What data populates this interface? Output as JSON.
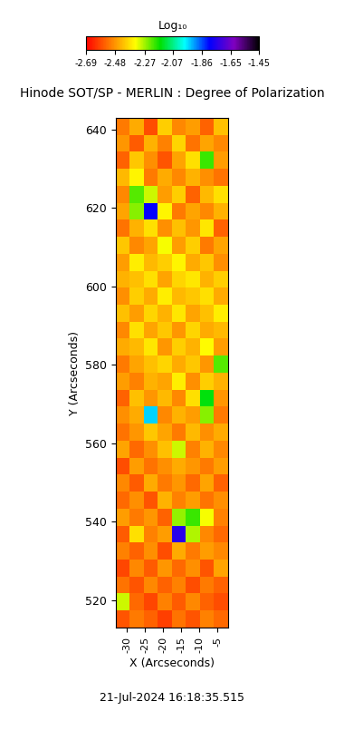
{
  "chart_data": {
    "type": "heatmap",
    "title": "Hinode SOT/SP - MERLIN : Degree of Polarization",
    "x_label": "X (Arcseconds)",
    "y_label": "Y (Arcseconds)",
    "xlim": [
      -33,
      -2
    ],
    "ylim": [
      513,
      643
    ],
    "xticks": [
      -30,
      -25,
      -20,
      -15,
      -10,
      -5
    ],
    "yticks": [
      520,
      540,
      560,
      580,
      600,
      620,
      640
    ],
    "annotations": [
      "21-Jul-2024 16:18:35.515"
    ],
    "colorbar": {
      "label": "Log₁₀",
      "range": [
        -2.69,
        -1.45
      ],
      "ticks": [
        -2.69,
        -2.48,
        -2.27,
        -2.07,
        -1.86,
        -1.65,
        -1.45
      ]
    },
    "cells": [
      [
        -2.52,
        -2.45,
        -2.58,
        -2.4,
        -2.5,
        -2.47,
        -2.55,
        -2.42
      ],
      [
        -2.48,
        -2.56,
        -2.44,
        -2.51,
        -2.39,
        -2.53,
        -2.46,
        -2.5
      ],
      [
        -2.55,
        -2.41,
        -2.49,
        -2.57,
        -2.46,
        -2.38,
        -2.2,
        -2.47
      ],
      [
        -2.43,
        -2.35,
        -2.52,
        -2.45,
        -2.5,
        -2.44,
        -2.49,
        -2.53
      ],
      [
        -2.5,
        -2.22,
        -2.3,
        -2.47,
        -2.4,
        -2.55,
        -2.43,
        -2.38
      ],
      [
        -2.46,
        -2.25,
        -1.8,
        -2.35,
        -2.52,
        -2.46,
        -2.5,
        -2.44
      ],
      [
        -2.53,
        -2.44,
        -2.38,
        -2.49,
        -2.42,
        -2.48,
        -2.37,
        -2.55
      ],
      [
        -2.41,
        -2.5,
        -2.46,
        -2.33,
        -2.47,
        -2.4,
        -2.52,
        -2.46
      ],
      [
        -2.47,
        -2.36,
        -2.43,
        -2.4,
        -2.35,
        -2.45,
        -2.41,
        -2.49
      ],
      [
        -2.44,
        -2.42,
        -2.38,
        -2.46,
        -2.39,
        -2.37,
        -2.44,
        -2.4
      ],
      [
        -2.49,
        -2.4,
        -2.45,
        -2.36,
        -2.43,
        -2.41,
        -2.38,
        -2.45
      ],
      [
        -2.42,
        -2.47,
        -2.39,
        -2.44,
        -2.37,
        -2.46,
        -2.42,
        -2.36
      ],
      [
        -2.5,
        -2.38,
        -2.46,
        -2.41,
        -2.48,
        -2.39,
        -2.45,
        -2.43
      ],
      [
        -2.45,
        -2.43,
        -2.37,
        -2.48,
        -2.4,
        -2.44,
        -2.34,
        -2.47
      ],
      [
        -2.52,
        -2.46,
        -2.42,
        -2.39,
        -2.45,
        -2.41,
        -2.48,
        -2.22
      ],
      [
        -2.47,
        -2.51,
        -2.44,
        -2.46,
        -2.36,
        -2.49,
        -2.4,
        -2.44
      ],
      [
        -2.55,
        -2.42,
        -2.48,
        -2.43,
        -2.5,
        -2.38,
        -2.15,
        -2.48
      ],
      [
        -2.49,
        -2.45,
        -1.95,
        -2.5,
        -2.44,
        -2.47,
        -2.25,
        -2.52
      ],
      [
        -2.53,
        -2.48,
        -2.41,
        -2.46,
        -2.52,
        -2.43,
        -2.49,
        -2.45
      ],
      [
        -2.46,
        -2.54,
        -2.49,
        -2.42,
        -2.3,
        -2.51,
        -2.44,
        -2.5
      ],
      [
        -2.58,
        -2.47,
        -2.53,
        -2.49,
        -2.45,
        -2.48,
        -2.52,
        -2.47
      ],
      [
        -2.5,
        -2.56,
        -2.45,
        -2.52,
        -2.48,
        -2.54,
        -2.46,
        -2.55
      ],
      [
        -2.54,
        -2.49,
        -2.57,
        -2.44,
        -2.51,
        -2.47,
        -2.53,
        -2.49
      ],
      [
        -2.47,
        -2.52,
        -2.48,
        -2.55,
        -2.26,
        -2.2,
        -2.33,
        -2.51
      ],
      [
        -2.56,
        -2.38,
        -2.51,
        -2.47,
        -1.75,
        -2.28,
        -2.5,
        -2.54
      ],
      [
        -2.51,
        -2.55,
        -2.49,
        -2.58,
        -2.45,
        -2.52,
        -2.47,
        -2.5
      ],
      [
        -2.59,
        -2.5,
        -2.56,
        -2.48,
        -2.54,
        -2.49,
        -2.57,
        -2.46
      ],
      [
        -2.53,
        -2.57,
        -2.5,
        -2.55,
        -2.51,
        -2.58,
        -2.52,
        -2.55
      ],
      [
        -2.3,
        -2.54,
        -2.59,
        -2.51,
        -2.56,
        -2.5,
        -2.55,
        -2.58
      ],
      [
        -2.57,
        -2.52,
        -2.55,
        -2.6,
        -2.53,
        -2.57,
        -2.51,
        -2.54
      ]
    ]
  }
}
